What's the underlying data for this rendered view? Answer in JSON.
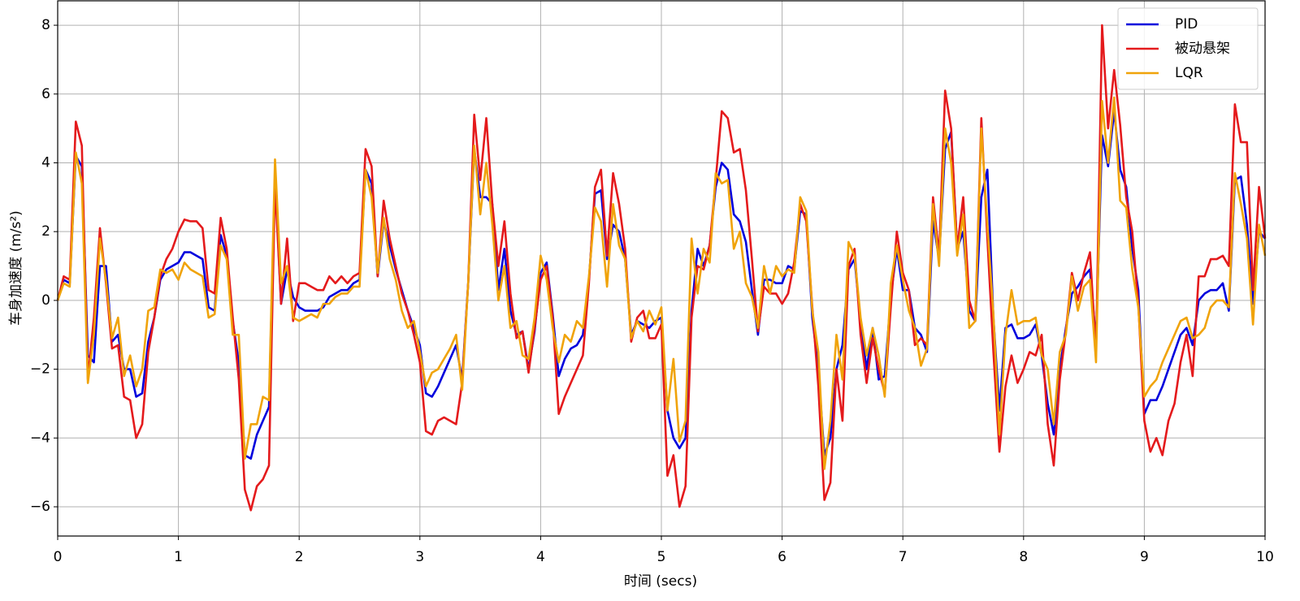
{
  "chart_data": {
    "type": "line",
    "xlabel": "时间 (secs)",
    "ylabel": "车身加速度 (m/s²)",
    "xlim": [
      0,
      10
    ],
    "ylim": [
      -6.85,
      8.71
    ],
    "xticks": [
      0,
      1,
      2,
      3,
      4,
      5,
      6,
      7,
      8,
      9,
      10
    ],
    "yticks": [
      {
        "value": -6,
        "label": "−6"
      },
      {
        "value": -4,
        "label": "−4"
      },
      {
        "value": -2,
        "label": "−2"
      },
      0,
      2,
      4,
      6,
      8
    ],
    "grid": true,
    "legend": "upper right",
    "x": [
      0,
      0.05,
      0.1,
      0.15,
      0.2,
      0.25,
      0.3,
      0.35,
      0.4,
      0.45,
      0.5,
      0.55,
      0.6,
      0.65,
      0.7,
      0.75,
      0.8,
      0.85,
      0.9,
      0.95,
      1,
      1.05,
      1.1,
      1.15,
      1.2,
      1.25,
      1.3,
      1.35,
      1.4,
      1.45,
      1.5,
      1.55,
      1.6,
      1.65,
      1.7,
      1.75,
      1.8,
      1.85,
      1.9,
      1.95,
      2,
      2.05,
      2.1,
      2.15,
      2.2,
      2.25,
      2.3,
      2.35,
      2.4,
      2.45,
      2.5,
      2.55,
      2.6,
      2.65,
      2.7,
      2.75,
      2.8,
      2.85,
      2.9,
      2.95,
      3,
      3.05,
      3.1,
      3.15,
      3.2,
      3.25,
      3.3,
      3.35,
      3.4,
      3.45,
      3.5,
      3.55,
      3.6,
      3.65,
      3.7,
      3.75,
      3.8,
      3.85,
      3.9,
      3.95,
      4,
      4.05,
      4.1,
      4.15,
      4.2,
      4.25,
      4.3,
      4.35,
      4.4,
      4.45,
      4.5,
      4.55,
      4.6,
      4.65,
      4.7,
      4.75,
      4.8,
      4.85,
      4.9,
      4.95,
      5,
      5.05,
      5.1,
      5.15,
      5.2,
      5.25,
      5.3,
      5.35,
      5.4,
      5.45,
      5.5,
      5.55,
      5.6,
      5.65,
      5.7,
      5.75,
      5.8,
      5.85,
      5.9,
      5.95,
      6,
      6.05,
      6.1,
      6.15,
      6.2,
      6.25,
      6.3,
      6.35,
      6.4,
      6.45,
      6.5,
      6.55,
      6.6,
      6.65,
      6.7,
      6.75,
      6.8,
      6.85,
      6.9,
      6.95,
      7,
      7.05,
      7.1,
      7.15,
      7.2,
      7.25,
      7.3,
      7.35,
      7.4,
      7.45,
      7.5,
      7.55,
      7.6,
      7.65,
      7.7,
      7.75,
      7.8,
      7.85,
      7.9,
      7.95,
      8,
      8.05,
      8.1,
      8.15,
      8.2,
      8.25,
      8.3,
      8.35,
      8.4,
      8.45,
      8.5,
      8.55,
      8.6,
      8.65,
      8.7,
      8.75,
      8.8,
      8.85,
      8.9,
      8.95,
      9,
      9.05,
      9.1,
      9.15,
      9.2,
      9.25,
      9.3,
      9.35,
      9.4,
      9.45,
      9.5,
      9.55,
      9.6,
      9.65,
      9.7,
      9.75,
      9.8,
      9.85,
      9.9,
      9.95,
      10
    ],
    "series": [
      {
        "name": "PID",
        "color": "#0000dd",
        "values": [
          0,
          0.6,
          0.5,
          4.2,
          3.9,
          -1.6,
          -1.8,
          1,
          1,
          -1.2,
          -1,
          -2,
          -2,
          -2.8,
          -2.7,
          -1.2,
          -0.5,
          0.6,
          0.9,
          1,
          1.1,
          1.4,
          1.4,
          1.3,
          1.2,
          -0.2,
          -0.3,
          1.9,
          1.3,
          -0.6,
          -1.8,
          -4.5,
          -4.6,
          -3.9,
          -3.5,
          -3.1,
          3.7,
          -0.1,
          0.9,
          0.1,
          -0.2,
          -0.3,
          -0.3,
          -0.3,
          -0.2,
          0.1,
          0.2,
          0.3,
          0.3,
          0.5,
          0.6,
          3.8,
          3.4,
          0.7,
          2.3,
          1.6,
          0.9,
          0.3,
          -0.3,
          -0.8,
          -1.3,
          -2.7,
          -2.8,
          -2.5,
          -2.1,
          -1.7,
          -1.3,
          -2.3,
          0.5,
          4.4,
          3,
          3,
          2.8,
          0.3,
          1.5,
          -0.3,
          -1,
          -0.9,
          -2,
          -0.9,
          0.8,
          1.1,
          -0.4,
          -2.2,
          -1.7,
          -1.4,
          -1.3,
          -1,
          0.6,
          3.1,
          3.2,
          1.2,
          2.2,
          2,
          1.2,
          -1,
          -0.6,
          -0.7,
          -0.8,
          -0.6,
          -0.5,
          -3.2,
          -4,
          -4.3,
          -4,
          -0.3,
          1.5,
          1,
          1.6,
          3.3,
          4,
          3.8,
          2.5,
          2.3,
          1.7,
          0.3,
          -1,
          0.6,
          0.6,
          0.5,
          0.5,
          1,
          0.9,
          2.6,
          2.5,
          -0.5,
          -2,
          -4.5,
          -4,
          -2,
          -1.3,
          0.9,
          1.2,
          -0.6,
          -2,
          -0.8,
          -2.3,
          -2.2,
          0.1,
          1.5,
          0.3,
          0.3,
          -0.8,
          -1,
          -1.5,
          2.3,
          1.2,
          4.4,
          4.9,
          1.5,
          2,
          -0.3,
          -0.6,
          3,
          3.8,
          -0.5,
          -3.2,
          -0.8,
          -0.7,
          -1.1,
          -1.1,
          -1,
          -0.7,
          -1.6,
          -3,
          -3.9,
          -2,
          -0.8,
          0.2,
          0.4,
          0.7,
          0.9,
          -1.2,
          4.8,
          3.9,
          5.5,
          3.8,
          3.3,
          1.5,
          0.3,
          -3.3,
          -2.9,
          -2.9,
          -2.5,
          -2,
          -1.5,
          -1,
          -0.8,
          -1.3,
          0,
          0.2,
          0.3,
          0.3,
          0.5,
          -0.3,
          3.5,
          3.6,
          2.2,
          -0.1,
          2,
          1.8
        ]
      },
      {
        "name": "被动悬架",
        "color": "#e41a1c",
        "values": [
          0,
          0.7,
          0.6,
          5.2,
          4.5,
          -2.3,
          -0.5,
          2.1,
          0.5,
          -1.4,
          -1.3,
          -2.8,
          -2.9,
          -4,
          -3.6,
          -1.5,
          -0.5,
          0.7,
          1.2,
          1.5,
          2,
          2.35,
          2.3,
          2.3,
          2.1,
          0.3,
          0.2,
          2.4,
          1.5,
          -0.5,
          -2.3,
          -5.5,
          -6.1,
          -5.4,
          -5.2,
          -4.8,
          3.4,
          -0.1,
          1.8,
          -0.6,
          0.5,
          0.5,
          0.4,
          0.3,
          0.3,
          0.7,
          0.5,
          0.7,
          0.5,
          0.7,
          0.8,
          4.4,
          3.9,
          0.7,
          2.9,
          1.8,
          1,
          0.2,
          -0.3,
          -1,
          -1.8,
          -3.8,
          -3.9,
          -3.5,
          -3.4,
          -3.5,
          -3.6,
          -2.4,
          0.5,
          5.4,
          3.5,
          5.3,
          2.8,
          1,
          2.3,
          0.2,
          -1.1,
          -0.9,
          -2.1,
          -0.8,
          0.6,
          1,
          -0.5,
          -3.3,
          -2.8,
          -2.4,
          -2,
          -1.6,
          0.5,
          3.3,
          3.8,
          1.3,
          3.7,
          2.8,
          1.5,
          -1.2,
          -0.5,
          -0.3,
          -1.1,
          -1.1,
          -0.7,
          -5.1,
          -4.5,
          -6,
          -5.4,
          -0.5,
          1,
          0.9,
          1.6,
          3.5,
          5.5,
          5.3,
          4.3,
          4.4,
          3.2,
          1.2,
          -0.9,
          0.4,
          0.2,
          0.2,
          -0.1,
          0.2,
          1.1,
          2.8,
          2.3,
          -0.2,
          -2.5,
          -5.8,
          -5.3,
          -2,
          -3.5,
          1,
          1.5,
          -1,
          -2.4,
          -1.1,
          -2,
          -2.7,
          -0.2,
          2,
          0.8,
          0.3,
          -1.3,
          -1.1,
          -1.3,
          3,
          1.3,
          6.1,
          5,
          1.5,
          3,
          0,
          -0.6,
          5.3,
          1.8,
          -1.5,
          -4.4,
          -2.5,
          -1.6,
          -2.4,
          -2,
          -1.5,
          -1.6,
          -1,
          -3.6,
          -4.8,
          -2.3,
          -0.9,
          0.8,
          0,
          0.8,
          1.4,
          -1.5,
          8,
          5,
          6.7,
          5.1,
          3,
          2,
          -0.1,
          -3.5,
          -4.4,
          -4,
          -4.5,
          -3.5,
          -3,
          -1.8,
          -1,
          -2.2,
          0.7,
          0.7,
          1.2,
          1.2,
          1.3,
          1,
          5.7,
          4.6,
          4.6,
          0.3,
          3.3,
          1.8
        ]
      },
      {
        "name": "LQR",
        "color": "#f0a30a",
        "values": [
          0,
          0.5,
          0.4,
          4.3,
          3.4,
          -2.4,
          -1,
          1.8,
          0.6,
          -1.1,
          -0.5,
          -2.2,
          -1.6,
          -2.5,
          -2,
          -0.3,
          -0.2,
          0.9,
          0.8,
          0.9,
          0.6,
          1.1,
          0.9,
          0.8,
          0.7,
          -0.5,
          -0.4,
          1.6,
          1.2,
          -1,
          -1,
          -4.6,
          -3.6,
          -3.6,
          -2.8,
          -2.9,
          4.1,
          0.5,
          1,
          -0.5,
          -0.6,
          -0.5,
          -0.4,
          -0.5,
          -0.1,
          -0.1,
          0.1,
          0.2,
          0.2,
          0.4,
          0.4,
          3.8,
          3,
          0.8,
          2.4,
          1.2,
          0.6,
          -0.3,
          -0.8,
          -0.6,
          -1.5,
          -2.5,
          -2.1,
          -2,
          -1.7,
          -1.4,
          -1,
          -2.6,
          0.5,
          4.5,
          2.5,
          4,
          2.2,
          0,
          1,
          -0.8,
          -0.6,
          -1.6,
          -1.7,
          -0.5,
          1.3,
          0.6,
          -0.8,
          -1.8,
          -1,
          -1.2,
          -0.6,
          -0.8,
          0.7,
          2.7,
          2.3,
          0.4,
          2.8,
          1.6,
          1.2,
          -1.1,
          -0.6,
          -0.9,
          -0.3,
          -0.7,
          -0.2,
          -3.2,
          -1.7,
          -4.1,
          -3.5,
          1.8,
          0.2,
          1.5,
          1.1,
          3.7,
          3.4,
          3.5,
          1.5,
          2,
          0.5,
          0.1,
          -0.8,
          1,
          0.2,
          1,
          0.7,
          0.9,
          0.8,
          3,
          2.6,
          -0.3,
          -1.5,
          -4.9,
          -3.5,
          -1,
          -2.3,
          1.7,
          1.3,
          -0.5,
          -1.6,
          -0.8,
          -1.6,
          -2.8,
          0.5,
          1.6,
          0.6,
          -0.3,
          -0.8,
          -1.9,
          -1.4,
          2.8,
          1,
          5,
          4,
          1.3,
          2.5,
          -0.8,
          -0.6,
          5,
          2.2,
          -0.4,
          -3.9,
          -1,
          0.3,
          -0.7,
          -0.6,
          -0.6,
          -0.5,
          -1.6,
          -2,
          -3.6,
          -1.5,
          -1,
          0.7,
          -0.3,
          0.4,
          0.6,
          -1.8,
          5.8,
          4,
          5.9,
          2.9,
          2.7,
          0.9,
          -0.2,
          -2.8,
          -2.5,
          -2.3,
          -1.8,
          -1.4,
          -1,
          -0.6,
          -0.5,
          -1.1,
          -1,
          -0.8,
          -0.2,
          0,
          0,
          -0.2,
          3.7,
          2.8,
          1.8,
          -0.7,
          2.2,
          1.3
        ]
      }
    ]
  }
}
